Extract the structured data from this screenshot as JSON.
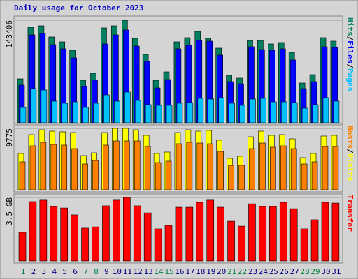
{
  "chart_data": [
    {
      "type": "bar",
      "title": "Daily usage for October 2023",
      "ylim": [
        0,
        143406
      ],
      "yticks": [
        143406
      ],
      "legend_separator": "/",
      "series": [
        {
          "name": "Hits",
          "color": "#008060",
          "values": [
            61460,
            133655,
            135606,
            119996,
            113166,
            101460,
            59510,
            69266,
            132680,
            135606,
            143406,
            118046,
            95606,
            59510,
            71217,
            113166,
            119021,
            127801,
            118046,
            104389,
            66339,
            62438,
            115120,
            115120,
            110241,
            112192,
            98535,
            55608,
            67315,
            119021,
            114143
          ]
        },
        {
          "name": "Files",
          "color": "#0000ff",
          "values": [
            52682,
            122924,
            124875,
            109267,
            103413,
            90730,
            50731,
            59512,
            110243,
            122924,
            129754,
            107316,
            85853,
            48780,
            60487,
            103413,
            108291,
            115120,
            114145,
            94633,
            57560,
            54633,
            106340,
            102438,
            101462,
            103413,
            87804,
            47804,
            57560,
            106340,
            105365
          ]
        },
        {
          "name": "Pages",
          "color": "#00c0ff",
          "values": [
            21463,
            47804,
            45853,
            30244,
            27316,
            29268,
            21463,
            27316,
            39024,
            30244,
            42926,
            31219,
            25365,
            24390,
            24390,
            27316,
            28292,
            34146,
            33170,
            35121,
            27316,
            24390,
            33170,
            34146,
            29268,
            29268,
            28292,
            20487,
            25365,
            35121,
            30244
          ]
        }
      ]
    },
    {
      "type": "bar",
      "ylim": [
        0,
        9775
      ],
      "yticks": [
        9775
      ],
      "legend_separator": "/",
      "series": [
        {
          "name": "Hosts",
          "color": "#ff8000",
          "values": [
            4443,
            6998,
            7553,
            7220,
            7109,
            6554,
            4110,
            4665,
            7109,
            7776,
            7776,
            7776,
            6887,
            4332,
            4554,
            7331,
            7553,
            7442,
            7331,
            6109,
            3888,
            3888,
            6554,
            7442,
            6776,
            6998,
            6554,
            4110,
            4443,
            6887,
            6887
          ]
        },
        {
          "name": "Visits",
          "color": "#ffff00",
          "values": [
            5776,
            8775,
            9553,
            9331,
            9220,
            9109,
            5443,
            5887,
            9109,
            9775,
            9775,
            9553,
            8664,
            5776,
            5998,
            9109,
            9553,
            9331,
            9442,
            7887,
            4999,
            5332,
            8442,
            9331,
            8664,
            8775,
            8109,
            5110,
            5776,
            8553,
            8664
          ]
        }
      ]
    },
    {
      "type": "bar",
      "ylim": [
        0,
        3.5
      ],
      "yticks": [
        {
          "value": 3.5,
          "label": "3.5 GB"
        }
      ],
      "categories": [
        "1",
        "2",
        "3",
        "4",
        "5",
        "6",
        "7",
        "8",
        "9",
        "10",
        "11",
        "12",
        "13",
        "14",
        "15",
        "16",
        "17",
        "18",
        "19",
        "20",
        "21",
        "22",
        "23",
        "24",
        "25",
        "26",
        "27",
        "28",
        "29",
        "30",
        "31"
      ],
      "category_colors": [
        "#008040",
        "#000080",
        "#000080",
        "#000080",
        "#000080",
        "#000080",
        "#008040",
        "#008040",
        "#000080",
        "#000080",
        "#000080",
        "#000080",
        "#000080",
        "#008040",
        "#008040",
        "#000080",
        "#000080",
        "#000080",
        "#000080",
        "#000080",
        "#008040",
        "#008040",
        "#000080",
        "#000080",
        "#000080",
        "#000080",
        "#000080",
        "#008040",
        "#008040",
        "#000080",
        "#000080"
      ],
      "series": [
        {
          "name": "Transfer",
          "color": "#ff0000",
          "values": [
            1.58,
            3.27,
            3.35,
            3.0,
            2.92,
            2.54,
            1.81,
            1.88,
            3.04,
            3.35,
            3.5,
            3.04,
            2.65,
            1.77,
            1.96,
            2.96,
            2.96,
            3.23,
            3.35,
            2.96,
            2.19,
            1.92,
            3.15,
            3.0,
            3.0,
            3.23,
            2.88,
            1.77,
            2.27,
            3.23,
            3.19
          ]
        }
      ]
    }
  ]
}
